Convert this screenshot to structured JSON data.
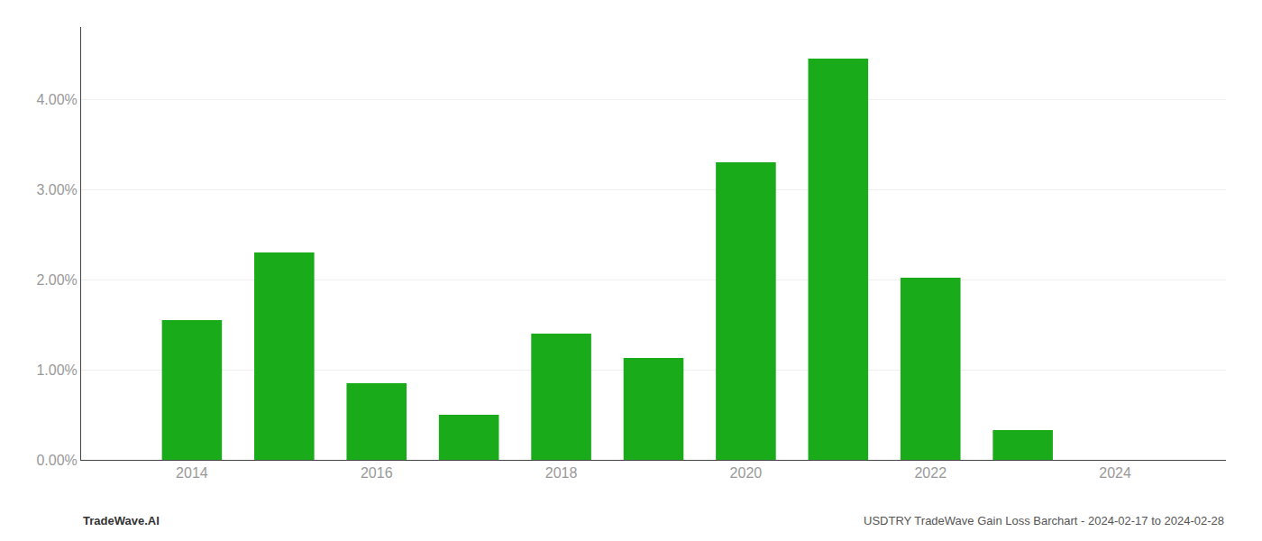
{
  "chart_data": {
    "type": "bar",
    "x": [
      2014,
      2015,
      2016,
      2017,
      2018,
      2019,
      2020,
      2021,
      2022,
      2023,
      2024
    ],
    "values": [
      0.0155,
      0.023,
      0.0085,
      0.005,
      0.014,
      0.0113,
      0.033,
      0.0445,
      0.0202,
      0.0033,
      0.0
    ],
    "color": "#1aab1a",
    "xlim": [
      2012.8,
      2025.2
    ],
    "xticks": [
      2014,
      2016,
      2018,
      2020,
      2022,
      2024
    ],
    "ylim": [
      0,
      0.048
    ],
    "yticks": [
      {
        "value": 0.0,
        "label": "0.00%"
      },
      {
        "value": 0.01,
        "label": "1.00%"
      },
      {
        "value": 0.02,
        "label": "2.00%"
      },
      {
        "value": 0.03,
        "label": "3.00%"
      },
      {
        "value": 0.04,
        "label": "4.00%"
      }
    ],
    "grid": "y",
    "annotations": [
      "TradeWave.AI",
      "USDTRY TradeWave Gain Loss Barchart - 2024-02-17 to 2024-02-28"
    ]
  }
}
